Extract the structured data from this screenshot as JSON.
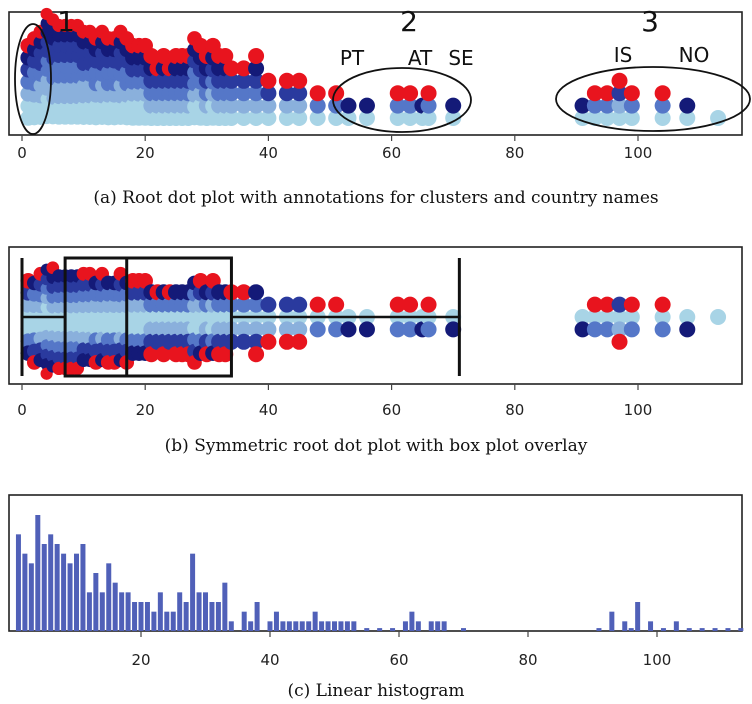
{
  "panels": {
    "a": {
      "caption": "(a)  Root dot plot with annotations for clusters and country names",
      "cluster_labels": [
        "1",
        "2",
        "3"
      ],
      "country_labels": [
        "PT",
        "AT",
        "SE",
        "IS",
        "NO"
      ],
      "x_ticks": [
        "0",
        "20",
        "40",
        "60",
        "80",
        "100"
      ]
    },
    "b": {
      "caption": "(b)  Symmetric root dot plot with box plot overlay",
      "x_ticks": [
        "0",
        "20",
        "40",
        "60",
        "80",
        "100"
      ]
    },
    "c": {
      "caption": "(c)  Linear histogram",
      "x_ticks": [
        "20",
        "40",
        "60",
        "80",
        "100"
      ]
    }
  },
  "colors": {
    "light": "#a8d4e6",
    "mid_light": "#8ab0dc",
    "mid": "#5577c8",
    "dark": "#2a3a9e",
    "darkest": "#141a78",
    "red": "#e8141e",
    "bar": "#5060b8"
  },
  "chart_data": [
    {
      "type": "scatter",
      "subtype": "root dot plot",
      "xlim": [
        0,
        115
      ],
      "columns": [
        {
          "x": 1,
          "n": 7
        },
        {
          "x": 2,
          "n": 8
        },
        {
          "x": 3,
          "n": 9
        },
        {
          "x": 4,
          "n": 12
        },
        {
          "x": 5,
          "n": 11
        },
        {
          "x": 6,
          "n": 10
        },
        {
          "x": 7,
          "n": 10
        },
        {
          "x": 8,
          "n": 10
        },
        {
          "x": 9,
          "n": 10
        },
        {
          "x": 10,
          "n": 9
        },
        {
          "x": 11,
          "n": 9
        },
        {
          "x": 12,
          "n": 8
        },
        {
          "x": 13,
          "n": 9
        },
        {
          "x": 14,
          "n": 8
        },
        {
          "x": 15,
          "n": 8
        },
        {
          "x": 16,
          "n": 9
        },
        {
          "x": 17,
          "n": 8
        },
        {
          "x": 18,
          "n": 7
        },
        {
          "x": 19,
          "n": 7
        },
        {
          "x": 20,
          "n": 7
        },
        {
          "x": 21,
          "n": 6
        },
        {
          "x": 22,
          "n": 5
        },
        {
          "x": 23,
          "n": 6
        },
        {
          "x": 24,
          "n": 5
        },
        {
          "x": 25,
          "n": 6
        },
        {
          "x": 26,
          "n": 6
        },
        {
          "x": 27,
          "n": 6
        },
        {
          "x": 28,
          "n": 8
        },
        {
          "x": 29,
          "n": 7
        },
        {
          "x": 30,
          "n": 6
        },
        {
          "x": 31,
          "n": 7
        },
        {
          "x": 32,
          "n": 6
        },
        {
          "x": 33,
          "n": 6
        },
        {
          "x": 34,
          "n": 5
        },
        {
          "x": 36,
          "n": 5
        },
        {
          "x": 38,
          "n": 6
        },
        {
          "x": 40,
          "n": 4
        },
        {
          "x": 43,
          "n": 4
        },
        {
          "x": 45,
          "n": 4
        },
        {
          "x": 48,
          "n": 3
        },
        {
          "x": 51,
          "n": 3
        },
        {
          "x": 53,
          "n": 2
        },
        {
          "x": 56,
          "n": 2
        },
        {
          "x": 61,
          "n": 3
        },
        {
          "x": 63,
          "n": 3
        },
        {
          "x": 65,
          "n": 2
        },
        {
          "x": 66,
          "n": 3
        },
        {
          "x": 70,
          "n": 2
        },
        {
          "x": 91,
          "n": 2
        },
        {
          "x": 93,
          "n": 3
        },
        {
          "x": 95,
          "n": 3
        },
        {
          "x": 97,
          "n": 4
        },
        {
          "x": 99,
          "n": 3
        },
        {
          "x": 104,
          "n": 3
        },
        {
          "x": 108,
          "n": 2
        },
        {
          "x": 113,
          "n": 1
        }
      ],
      "box_plot": {
        "min": 0,
        "q1": 7,
        "median": 17,
        "q3": 34,
        "max": 71,
        "whisker_y": 0
      }
    },
    {
      "type": "bar",
      "subtype": "linear histogram",
      "xlim": [
        0,
        115
      ],
      "ylim": [
        0,
        12
      ],
      "bins": [
        [
          1,
          10
        ],
        [
          2,
          8
        ],
        [
          3,
          7
        ],
        [
          4,
          12
        ],
        [
          5,
          9
        ],
        [
          6,
          10
        ],
        [
          7,
          9
        ],
        [
          8,
          8
        ],
        [
          9,
          7
        ],
        [
          10,
          8
        ],
        [
          11,
          9
        ],
        [
          12,
          4
        ],
        [
          13,
          6
        ],
        [
          14,
          4
        ],
        [
          15,
          7
        ],
        [
          16,
          5
        ],
        [
          17,
          4
        ],
        [
          18,
          4
        ],
        [
          19,
          3
        ],
        [
          20,
          3
        ],
        [
          21,
          3
        ],
        [
          22,
          2
        ],
        [
          23,
          4
        ],
        [
          24,
          2
        ],
        [
          25,
          2
        ],
        [
          26,
          4
        ],
        [
          27,
          3
        ],
        [
          28,
          8
        ],
        [
          29,
          4
        ],
        [
          30,
          4
        ],
        [
          31,
          3
        ],
        [
          32,
          3
        ],
        [
          33,
          5
        ],
        [
          34,
          1
        ],
        [
          36,
          2
        ],
        [
          37,
          1
        ],
        [
          38,
          3
        ],
        [
          40,
          1
        ],
        [
          41,
          2
        ],
        [
          42,
          1
        ],
        [
          43,
          1
        ],
        [
          44,
          1
        ],
        [
          45,
          1
        ],
        [
          46,
          1
        ],
        [
          47,
          2
        ],
        [
          48,
          1
        ],
        [
          49,
          1
        ],
        [
          50,
          1
        ],
        [
          51,
          1
        ],
        [
          52,
          1
        ],
        [
          53,
          1
        ],
        [
          55,
          0.3
        ],
        [
          57,
          0.3
        ],
        [
          59,
          0.3
        ],
        [
          61,
          1
        ],
        [
          62,
          2
        ],
        [
          63,
          1
        ],
        [
          65,
          1
        ],
        [
          66,
          1
        ],
        [
          67,
          1
        ],
        [
          70,
          0.3
        ],
        [
          91,
          0.3
        ],
        [
          93,
          2
        ],
        [
          95,
          1
        ],
        [
          96,
          0.3
        ],
        [
          97,
          3
        ],
        [
          99,
          1
        ],
        [
          101,
          0.3
        ],
        [
          103,
          1
        ],
        [
          105,
          0.3
        ],
        [
          107,
          0.3
        ],
        [
          109,
          0.3
        ],
        [
          111,
          0.3
        ],
        [
          113,
          0.3
        ]
      ]
    }
  ]
}
